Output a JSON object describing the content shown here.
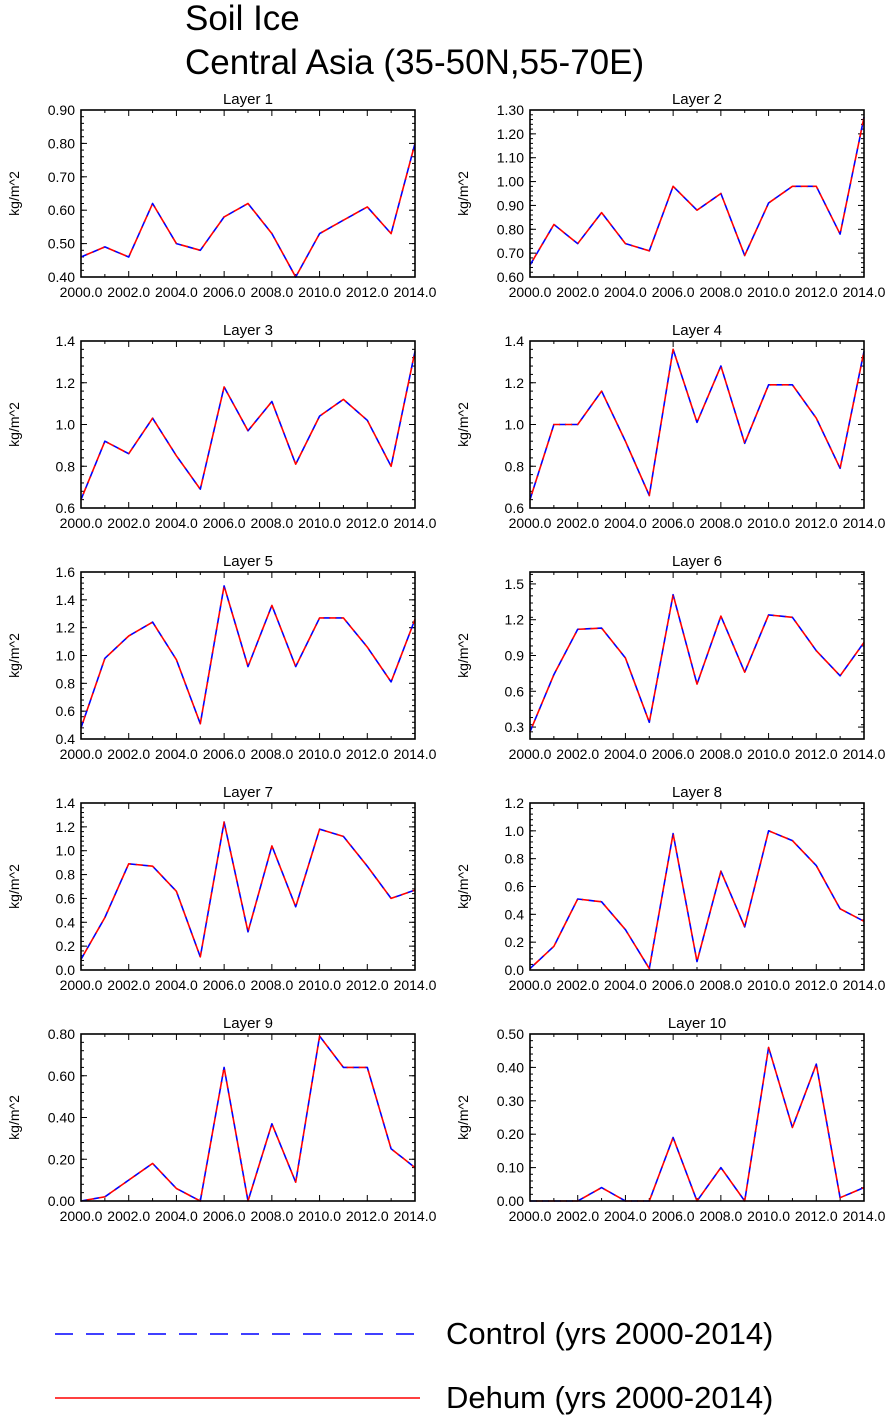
{
  "figure": {
    "title_lines": [
      "Soil Ice",
      "Central Asia (35-50N,55-70E)"
    ]
  },
  "legend": {
    "items": [
      {
        "label": "Control (yrs 2000-2014)",
        "color": "#0000ff",
        "style": "dashed"
      },
      {
        "label": "Dehum (yrs 2000-2014)",
        "color": "#ff0000",
        "style": "solid"
      }
    ]
  },
  "chart_data": [
    {
      "type": "line",
      "title": "Layer 1",
      "ylabel": "kg/m^2",
      "x": [
        2000,
        2001,
        2002,
        2003,
        2004,
        2005,
        2006,
        2007,
        2008,
        2009,
        2010,
        2011,
        2012,
        2013,
        2014
      ],
      "xlim": [
        2000,
        2014
      ],
      "xticks": [
        "2000.0",
        "2002.0",
        "2004.0",
        "2006.0",
        "2008.0",
        "2010.0",
        "2012.0",
        "2014.0"
      ],
      "ylim": [
        0.4,
        0.9
      ],
      "yticks": [
        "0.40",
        "0.50",
        "0.60",
        "0.70",
        "0.80",
        "0.90"
      ],
      "series": [
        {
          "name": "Control (yrs 2000-2014)",
          "values": [
            0.46,
            0.49,
            0.46,
            0.62,
            0.5,
            0.48,
            0.58,
            0.62,
            0.53,
            0.4,
            0.53,
            0.57,
            0.61,
            0.53,
            0.8
          ]
        },
        {
          "name": "Dehum (yrs 2000-2014)",
          "values": [
            0.46,
            0.49,
            0.46,
            0.62,
            0.5,
            0.48,
            0.58,
            0.62,
            0.53,
            0.4,
            0.53,
            0.57,
            0.61,
            0.53,
            0.8
          ]
        }
      ]
    },
    {
      "type": "line",
      "title": "Layer 2",
      "ylabel": "kg/m^2",
      "x": [
        2000,
        2001,
        2002,
        2003,
        2004,
        2005,
        2006,
        2007,
        2008,
        2009,
        2010,
        2011,
        2012,
        2013,
        2014
      ],
      "xlim": [
        2000,
        2014
      ],
      "xticks": [
        "2000.0",
        "2002.0",
        "2004.0",
        "2006.0",
        "2008.0",
        "2010.0",
        "2012.0",
        "2014.0"
      ],
      "ylim": [
        0.6,
        1.3
      ],
      "yticks": [
        "0.60",
        "0.70",
        "0.80",
        "0.90",
        "1.00",
        "1.10",
        "1.20",
        "1.30"
      ],
      "series": [
        {
          "name": "Control (yrs 2000-2014)",
          "values": [
            0.65,
            0.82,
            0.74,
            0.87,
            0.74,
            0.71,
            0.98,
            0.88,
            0.95,
            0.69,
            0.91,
            0.98,
            0.98,
            0.78,
            1.27
          ]
        },
        {
          "name": "Dehum (yrs 2000-2014)",
          "values": [
            0.65,
            0.82,
            0.74,
            0.87,
            0.74,
            0.71,
            0.98,
            0.88,
            0.95,
            0.69,
            0.91,
            0.98,
            0.98,
            0.78,
            1.27
          ]
        }
      ]
    },
    {
      "type": "line",
      "title": "Layer 3",
      "ylabel": "kg/m^2",
      "x": [
        2000,
        2001,
        2002,
        2003,
        2004,
        2005,
        2006,
        2007,
        2008,
        2009,
        2010,
        2011,
        2012,
        2013,
        2014
      ],
      "xlim": [
        2000,
        2014
      ],
      "xticks": [
        "2000.0",
        "2002.0",
        "2004.0",
        "2006.0",
        "2008.0",
        "2010.0",
        "2012.0",
        "2014.0"
      ],
      "ylim": [
        0.6,
        1.4
      ],
      "yticks": [
        "0.6",
        "0.8",
        "1.0",
        "1.2",
        "1.4"
      ],
      "series": [
        {
          "name": "Control (yrs 2000-2014)",
          "values": [
            0.64,
            0.92,
            0.86,
            1.03,
            0.85,
            0.69,
            1.18,
            0.97,
            1.11,
            0.81,
            1.04,
            1.12,
            1.02,
            0.8,
            1.35
          ]
        },
        {
          "name": "Dehum (yrs 2000-2014)",
          "values": [
            0.64,
            0.92,
            0.86,
            1.03,
            0.85,
            0.69,
            1.18,
            0.97,
            1.11,
            0.81,
            1.04,
            1.12,
            1.02,
            0.8,
            1.35
          ]
        }
      ]
    },
    {
      "type": "line",
      "title": "Layer 4",
      "ylabel": "kg/m^2",
      "x": [
        2000,
        2001,
        2002,
        2003,
        2004,
        2005,
        2006,
        2007,
        2008,
        2009,
        2010,
        2011,
        2012,
        2013,
        2014
      ],
      "xlim": [
        2000,
        2014
      ],
      "xticks": [
        "2000.0",
        "2002.0",
        "2004.0",
        "2006.0",
        "2008.0",
        "2010.0",
        "2012.0",
        "2014.0"
      ],
      "ylim": [
        0.6,
        1.4
      ],
      "yticks": [
        "0.6",
        "0.8",
        "1.0",
        "1.2",
        "1.4"
      ],
      "series": [
        {
          "name": "Control (yrs 2000-2014)",
          "values": [
            0.64,
            1.0,
            1.0,
            1.16,
            0.92,
            0.66,
            1.36,
            1.01,
            1.28,
            0.91,
            1.19,
            1.19,
            1.03,
            0.79,
            1.35
          ]
        },
        {
          "name": "Dehum (yrs 2000-2014)",
          "values": [
            0.64,
            1.0,
            1.0,
            1.16,
            0.92,
            0.66,
            1.36,
            1.01,
            1.28,
            0.91,
            1.19,
            1.19,
            1.03,
            0.79,
            1.35
          ]
        }
      ]
    },
    {
      "type": "line",
      "title": "Layer 5",
      "ylabel": "kg/m^2",
      "x": [
        2000,
        2001,
        2002,
        2003,
        2004,
        2005,
        2006,
        2007,
        2008,
        2009,
        2010,
        2011,
        2012,
        2013,
        2014
      ],
      "xlim": [
        2000,
        2014
      ],
      "xticks": [
        "2000.0",
        "2002.0",
        "2004.0",
        "2006.0",
        "2008.0",
        "2010.0",
        "2012.0",
        "2014.0"
      ],
      "ylim": [
        0.4,
        1.6
      ],
      "yticks": [
        "0.4",
        "0.6",
        "0.8",
        "1.0",
        "1.2",
        "1.4",
        "1.6"
      ],
      "series": [
        {
          "name": "Control (yrs 2000-2014)",
          "values": [
            0.48,
            0.98,
            1.14,
            1.24,
            0.97,
            0.51,
            1.5,
            0.92,
            1.36,
            0.92,
            1.27,
            1.27,
            1.06,
            0.81,
            1.26
          ]
        },
        {
          "name": "Dehum (yrs 2000-2014)",
          "values": [
            0.48,
            0.98,
            1.14,
            1.24,
            0.97,
            0.51,
            1.5,
            0.92,
            1.36,
            0.92,
            1.27,
            1.27,
            1.06,
            0.81,
            1.26
          ]
        }
      ]
    },
    {
      "type": "line",
      "title": "Layer 6",
      "ylabel": "kg/m^2",
      "x": [
        2000,
        2001,
        2002,
        2003,
        2004,
        2005,
        2006,
        2007,
        2008,
        2009,
        2010,
        2011,
        2012,
        2013,
        2014
      ],
      "xlim": [
        2000,
        2014
      ],
      "xticks": [
        "2000.0",
        "2002.0",
        "2004.0",
        "2006.0",
        "2008.0",
        "2010.0",
        "2012.0",
        "2014.0"
      ],
      "ylim": [
        0.2,
        1.6
      ],
      "yticks": [
        "0.3",
        "0.6",
        "0.9",
        "1.2",
        "1.5"
      ],
      "series": [
        {
          "name": "Control (yrs 2000-2014)",
          "values": [
            0.26,
            0.74,
            1.12,
            1.13,
            0.88,
            0.34,
            1.41,
            0.66,
            1.23,
            0.76,
            1.24,
            1.22,
            0.94,
            0.73,
            1.01
          ]
        },
        {
          "name": "Dehum (yrs 2000-2014)",
          "values": [
            0.26,
            0.74,
            1.12,
            1.13,
            0.88,
            0.34,
            1.41,
            0.66,
            1.23,
            0.76,
            1.24,
            1.22,
            0.94,
            0.73,
            1.01
          ]
        }
      ]
    },
    {
      "type": "line",
      "title": "Layer 7",
      "ylabel": "kg/m^2",
      "x": [
        2000,
        2001,
        2002,
        2003,
        2004,
        2005,
        2006,
        2007,
        2008,
        2009,
        2010,
        2011,
        2012,
        2013,
        2014
      ],
      "xlim": [
        2000,
        2014
      ],
      "xticks": [
        "2000.0",
        "2002.0",
        "2004.0",
        "2006.0",
        "2008.0",
        "2010.0",
        "2012.0",
        "2014.0"
      ],
      "ylim": [
        0.0,
        1.4
      ],
      "yticks": [
        "0.0",
        "0.2",
        "0.4",
        "0.6",
        "0.8",
        "1.0",
        "1.2",
        "1.4"
      ],
      "series": [
        {
          "name": "Control (yrs 2000-2014)",
          "values": [
            0.09,
            0.44,
            0.89,
            0.87,
            0.66,
            0.11,
            1.24,
            0.32,
            1.04,
            0.53,
            1.18,
            1.12,
            0.87,
            0.6,
            0.67
          ]
        },
        {
          "name": "Dehum (yrs 2000-2014)",
          "values": [
            0.09,
            0.44,
            0.89,
            0.87,
            0.66,
            0.11,
            1.24,
            0.32,
            1.04,
            0.53,
            1.18,
            1.12,
            0.87,
            0.6,
            0.67
          ]
        }
      ]
    },
    {
      "type": "line",
      "title": "Layer 8",
      "ylabel": "kg/m^2",
      "x": [
        2000,
        2001,
        2002,
        2003,
        2004,
        2005,
        2006,
        2007,
        2008,
        2009,
        2010,
        2011,
        2012,
        2013,
        2014
      ],
      "xlim": [
        2000,
        2014
      ],
      "xticks": [
        "2000.0",
        "2002.0",
        "2004.0",
        "2006.0",
        "2008.0",
        "2010.0",
        "2012.0",
        "2014.0"
      ],
      "ylim": [
        0.0,
        1.2
      ],
      "yticks": [
        "0.0",
        "0.2",
        "0.4",
        "0.6",
        "0.8",
        "1.0",
        "1.2"
      ],
      "series": [
        {
          "name": "Control (yrs 2000-2014)",
          "values": [
            0.01,
            0.17,
            0.51,
            0.49,
            0.29,
            0.01,
            0.98,
            0.06,
            0.71,
            0.31,
            1.0,
            0.93,
            0.75,
            0.44,
            0.35
          ]
        },
        {
          "name": "Dehum (yrs 2000-2014)",
          "values": [
            0.01,
            0.17,
            0.51,
            0.49,
            0.29,
            0.01,
            0.98,
            0.06,
            0.71,
            0.31,
            1.0,
            0.93,
            0.75,
            0.44,
            0.35
          ]
        }
      ]
    },
    {
      "type": "line",
      "title": "Layer 9",
      "ylabel": "kg/m^2",
      "x": [
        2000,
        2001,
        2002,
        2003,
        2004,
        2005,
        2006,
        2007,
        2008,
        2009,
        2010,
        2011,
        2012,
        2013,
        2014
      ],
      "xlim": [
        2000,
        2014
      ],
      "xticks": [
        "2000.0",
        "2002.0",
        "2004.0",
        "2006.0",
        "2008.0",
        "2010.0",
        "2012.0",
        "2014.0"
      ],
      "ylim": [
        0.0,
        0.8
      ],
      "yticks": [
        "0.00",
        "0.20",
        "0.40",
        "0.60",
        "0.80"
      ],
      "series": [
        {
          "name": "Control (yrs 2000-2014)",
          "values": [
            0.0,
            0.02,
            0.1,
            0.18,
            0.06,
            0.0,
            0.64,
            0.0,
            0.37,
            0.09,
            0.79,
            0.64,
            0.64,
            0.25,
            0.16
          ]
        },
        {
          "name": "Dehum (yrs 2000-2014)",
          "values": [
            0.0,
            0.02,
            0.1,
            0.18,
            0.06,
            0.0,
            0.64,
            0.0,
            0.37,
            0.09,
            0.79,
            0.64,
            0.64,
            0.25,
            0.16
          ]
        }
      ]
    },
    {
      "type": "line",
      "title": "Layer 10",
      "ylabel": "kg/m^2",
      "x": [
        2000,
        2001,
        2002,
        2003,
        2004,
        2005,
        2006,
        2007,
        2008,
        2009,
        2010,
        2011,
        2012,
        2013,
        2014
      ],
      "xlim": [
        2000,
        2014
      ],
      "xticks": [
        "2000.0",
        "2002.0",
        "2004.0",
        "2006.0",
        "2008.0",
        "2010.0",
        "2012.0",
        "2014.0"
      ],
      "ylim": [
        0.0,
        0.5
      ],
      "yticks": [
        "0.00",
        "0.10",
        "0.20",
        "0.30",
        "0.40",
        "0.50"
      ],
      "series": [
        {
          "name": "Control (yrs 2000-2014)",
          "values": [
            0.0,
            0.0,
            0.0,
            0.04,
            0.0,
            0.0,
            0.19,
            0.0,
            0.1,
            0.0,
            0.46,
            0.22,
            0.41,
            0.01,
            0.04
          ]
        },
        {
          "name": "Dehum (yrs 2000-2014)",
          "values": [
            0.0,
            0.0,
            0.0,
            0.04,
            0.0,
            0.0,
            0.19,
            0.0,
            0.1,
            0.0,
            0.46,
            0.22,
            0.41,
            0.01,
            0.04
          ]
        }
      ]
    }
  ]
}
